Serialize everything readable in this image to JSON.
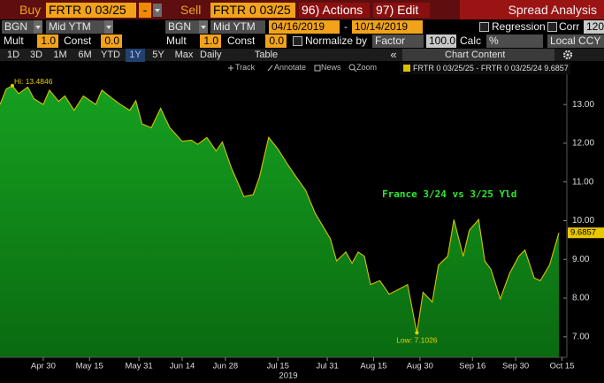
{
  "toolbar": {
    "buy_label": "Buy",
    "buy_security": "FRTR 0 03/25",
    "buy_sep": "-",
    "sell_label": "Sell",
    "sell_security": "FRTR 0 03/25",
    "actions": "96) Actions",
    "edit": "97) Edit",
    "title": "Spread Analysis"
  },
  "settings_row": {
    "source_1": "BGN",
    "field_1": "Mid YTM",
    "source_2": "BGN",
    "field_2": "Mid YTM",
    "start_date": "04/16/2019",
    "date_sep": "-",
    "end_date": "10/14/2019",
    "regression": "Regression",
    "corr": "Corr",
    "corr_window": "120"
  },
  "adjust_row": {
    "mult_label_1": "Mult",
    "mult_1": "1.0",
    "const_label_1": "Const",
    "const_1": "0.0",
    "mult_label_2": "Mult",
    "mult_2": "1.0",
    "const_label_2": "Const",
    "const_2": "0.0",
    "normalize": "Normalize by",
    "normalize_mode": "Factor",
    "factor": "100.0",
    "calc_label": "Calc",
    "calc": "%",
    "currency": "Local CCY"
  },
  "periods": [
    "1D",
    "3D",
    "1M",
    "6M",
    "YTD",
    "1Y",
    "5Y",
    "Max"
  ],
  "frequency": "Daily",
  "table": "Table",
  "collapse": "«",
  "chart_content": "Chart Content",
  "tools": [
    "Track",
    "Annotate",
    "News",
    "Zoom"
  ],
  "chart_data": {
    "type": "area",
    "annotation": "France 3/24 vs 3/25 Yld",
    "hi_label": "Hi: 13.4846",
    "low_label": "Low: 7.1026",
    "x_year_label": "2019",
    "x": [
      "2019-04-16",
      "2019-04-18",
      "2019-04-20",
      "2019-04-22",
      "2019-04-25",
      "2019-04-27",
      "2019-04-30",
      "2019-05-02",
      "2019-05-05",
      "2019-05-07",
      "2019-05-10",
      "2019-05-13",
      "2019-05-17",
      "2019-05-19",
      "2019-05-22",
      "2019-05-25",
      "2019-05-28",
      "2019-05-30",
      "2019-06-01",
      "2019-06-04",
      "2019-06-07",
      "2019-06-10",
      "2019-06-14",
      "2019-06-17",
      "2019-06-19",
      "2019-06-22",
      "2019-06-25",
      "2019-06-27",
      "2019-06-30",
      "2019-07-04",
      "2019-07-07",
      "2019-07-09",
      "2019-07-12",
      "2019-07-15",
      "2019-07-18",
      "2019-07-21",
      "2019-07-24",
      "2019-07-27",
      "2019-07-30",
      "2019-08-01",
      "2019-08-03",
      "2019-08-06",
      "2019-08-08",
      "2019-08-10",
      "2019-08-12",
      "2019-08-14",
      "2019-08-17",
      "2019-08-20",
      "2019-08-23",
      "2019-08-26",
      "2019-08-29",
      "2019-08-31",
      "2019-09-03",
      "2019-09-05",
      "2019-09-08",
      "2019-09-10",
      "2019-09-13",
      "2019-09-15",
      "2019-09-18",
      "2019-09-20",
      "2019-09-22",
      "2019-09-25",
      "2019-09-28",
      "2019-10-01",
      "2019-10-03",
      "2019-10-06",
      "2019-10-08",
      "2019-10-11",
      "2019-10-14"
    ],
    "series": [
      {
        "name": "FRTR 0 03/25/25 - FRTR 0 03/25/24",
        "color": "#d8c200",
        "fill": "#0f8a17",
        "values": [
          13.0,
          13.4,
          13.4846,
          13.28,
          13.45,
          13.15,
          13.0,
          13.37,
          13.08,
          13.22,
          12.85,
          13.22,
          13.0,
          13.37,
          13.18,
          13.0,
          12.85,
          13.1,
          12.5,
          12.4,
          12.9,
          12.4,
          12.05,
          12.08,
          11.97,
          12.15,
          11.8,
          12.03,
          11.35,
          10.62,
          10.67,
          11.12,
          12.15,
          11.85,
          11.47,
          11.12,
          10.78,
          10.2,
          9.8,
          9.53,
          8.96,
          9.19,
          8.9,
          9.19,
          9.08,
          8.35,
          8.45,
          8.1,
          8.22,
          8.35,
          7.1026,
          8.15,
          7.9,
          8.85,
          9.08,
          10.03,
          9.08,
          9.75,
          10.03,
          8.96,
          8.74,
          7.98,
          8.63,
          9.08,
          9.24,
          8.52,
          8.45,
          8.86,
          9.6857
        ]
      }
    ],
    "xlim": [
      "2019-04-16",
      "2019-10-14"
    ],
    "xticks": [
      {
        "value": "2019-04-30",
        "label": "Apr 30"
      },
      {
        "value": "2019-05-15",
        "label": "May 15"
      },
      {
        "value": "2019-05-31",
        "label": "May 31"
      },
      {
        "value": "2019-06-14",
        "label": "Jun 14"
      },
      {
        "value": "2019-06-28",
        "label": "Jun 28"
      },
      {
        "value": "2019-07-15",
        "label": "Jul 15"
      },
      {
        "value": "2019-07-31",
        "label": "Jul 31"
      },
      {
        "value": "2019-08-15",
        "label": "Aug 15"
      },
      {
        "value": "2019-08-30",
        "label": "Aug 30"
      },
      {
        "value": "2019-09-16",
        "label": "Sep 16"
      },
      {
        "value": "2019-09-30",
        "label": "Sep 30"
      },
      {
        "value": "2019-10-15",
        "label": "Oct 15"
      }
    ],
    "ylim": [
      6.47,
      13.78
    ],
    "yticks": [
      {
        "value": 7,
        "label": "7.00"
      },
      {
        "value": 8,
        "label": "8.00"
      },
      {
        "value": 9,
        "label": "9.00"
      },
      {
        "value": 10,
        "label": "10.00"
      },
      {
        "value": 11,
        "label": "11.00"
      },
      {
        "value": 12,
        "label": "12.00"
      },
      {
        "value": 13,
        "label": "13.00"
      }
    ],
    "grid": false
  }
}
